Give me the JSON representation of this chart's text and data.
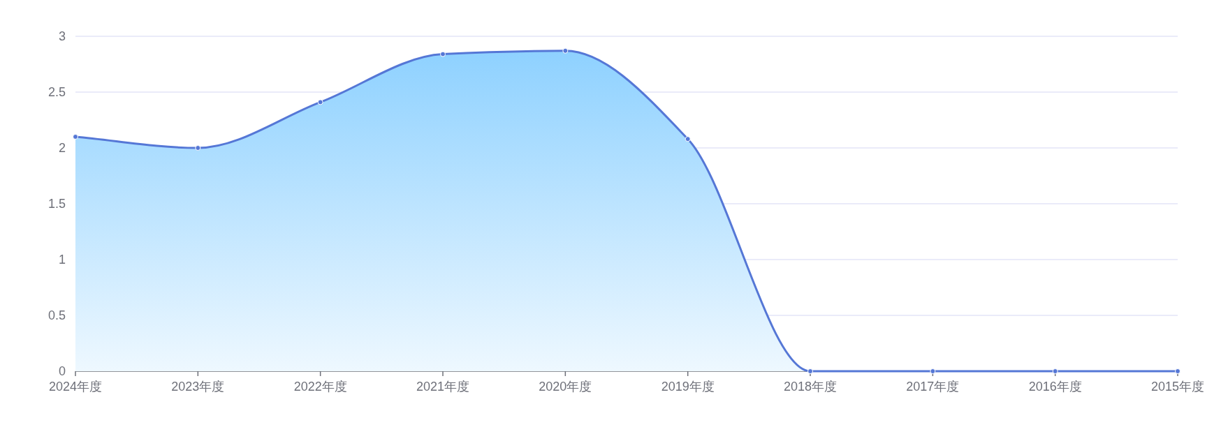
{
  "chart_data": {
    "type": "area",
    "categories": [
      "2024年度",
      "2023年度",
      "2022年度",
      "2021年度",
      "2020年度",
      "2019年度",
      "2018年度",
      "2017年度",
      "2016年度",
      "2015年度"
    ],
    "series": [
      {
        "color": "#5577d6",
        "values": [
          2.1,
          2.0,
          2.41,
          2.84,
          2.87,
          2.08,
          0,
          0,
          0,
          0
        ]
      }
    ],
    "ylim": [
      0,
      3
    ],
    "yticks": [
      0,
      0.5,
      1,
      1.5,
      2,
      2.5,
      3
    ],
    "grid": "y",
    "marker": "circle"
  }
}
